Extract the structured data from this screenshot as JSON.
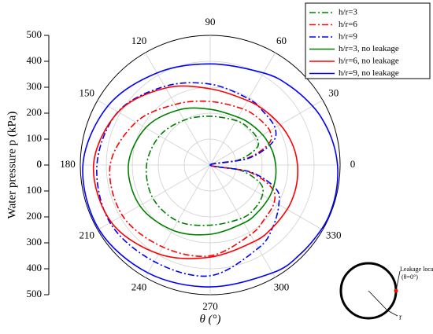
{
  "chart_data": {
    "type": "polar-line",
    "y_label": "Water pressure p (kPa)",
    "x_label": "θ (°)",
    "theta": [
      0,
      10,
      20,
      30,
      45,
      60,
      90,
      120,
      150,
      180,
      210,
      240,
      270,
      300,
      315,
      330,
      340,
      350
    ],
    "thetaticks": [
      0,
      30,
      60,
      90,
      120,
      150,
      180,
      210,
      240,
      270,
      300,
      330
    ],
    "rlim": [
      0,
      500
    ],
    "rticks": [
      0,
      100,
      200,
      300,
      400,
      500
    ],
    "grid": true,
    "legend": "upper right",
    "series": [
      {
        "name": "h/r=3",
        "color": "#008000",
        "style": "dashdot",
        "values": [
          0,
          110,
          190,
          208,
          205,
          198,
          188,
          200,
          225,
          245,
          255,
          250,
          232,
          238,
          240,
          232,
          205,
          120
        ]
      },
      {
        "name": "h/r=6",
        "color": "#ff0000",
        "style": "dashdot",
        "values": [
          0,
          140,
          240,
          265,
          258,
          250,
          245,
          270,
          330,
          385,
          390,
          365,
          350,
          310,
          295,
          285,
          250,
          150
        ]
      },
      {
        "name": "h/r=9",
        "color": "#0000ff",
        "style": "dashdot",
        "values": [
          0,
          150,
          255,
          288,
          290,
          295,
          312,
          350,
          410,
          436,
          445,
          430,
          427,
          370,
          340,
          305,
          270,
          160
        ]
      },
      {
        "name": "h/r=3, no leakage",
        "color": "#008000",
        "style": "solid",
        "values": [
          252,
          247,
          240,
          233,
          222,
          213,
          215,
          245,
          287,
          315,
          313,
          290,
          267,
          258,
          258,
          259,
          258,
          256
        ]
      },
      {
        "name": "h/r=6, no leakage",
        "color": "#ff0000",
        "style": "solid",
        "values": [
          336,
          330,
          321,
          311,
          297,
          287,
          294,
          343,
          409,
          449,
          440,
          396,
          355,
          340,
          340,
          342,
          342,
          340
        ]
      },
      {
        "name": "h/r=9, no leakage",
        "color": "#0000ff",
        "style": "solid",
        "values": [
          490,
          481,
          469,
          455,
          432,
          410,
          390,
          410,
          455,
          490,
          495,
          480,
          470,
          480,
          488,
          495,
          497,
          495
        ]
      }
    ],
    "annotations": [
      "Leakage location",
      "(θ=0°)",
      "r"
    ]
  }
}
